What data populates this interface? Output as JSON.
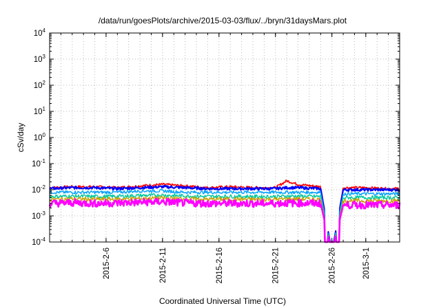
{
  "chart_data": {
    "type": "line",
    "title": "/data/run/goesPlots/archive/2015-03-03/flux/../bryn/31daysMars.plot",
    "xlabel": "Coordinated Universal Time (UTC)",
    "ylabel": "cSv/day",
    "yscale": "log",
    "ylim": [
      0.0001,
      10000
    ],
    "yticks": [
      {
        "base": "10",
        "exp": "-4",
        "value": 0.0001
      },
      {
        "base": "10",
        "exp": "-3",
        "value": 0.001
      },
      {
        "base": "10",
        "exp": "-2",
        "value": 0.01
      },
      {
        "base": "10",
        "exp": "-1",
        "value": 0.1
      },
      {
        "base": "10",
        "exp": "0",
        "value": 1
      },
      {
        "base": "10",
        "exp": "1",
        "value": 10
      },
      {
        "base": "10",
        "exp": "2",
        "value": 100
      },
      {
        "base": "10",
        "exp": "3",
        "value": 1000
      },
      {
        "base": "10",
        "exp": "4",
        "value": 10000
      }
    ],
    "xlim": [
      "2015-02-01",
      "2015-03-04"
    ],
    "xticks": [
      "2015-2-6",
      "2015-2-11",
      "2015-2-16",
      "2015-2-21",
      "2015-2-26",
      "2015-3-1"
    ],
    "grid": true,
    "series": [
      {
        "color": "#ff0000",
        "x": [
          "2015-02-01",
          "2015-02-03",
          "2015-02-05",
          "2015-02-07",
          "2015-02-09",
          "2015-02-11",
          "2015-02-13",
          "2015-02-15",
          "2015-02-17",
          "2015-02-19",
          "2015-02-21",
          "2015-02-22",
          "2015-02-23",
          "2015-02-25",
          "2015-02-26",
          "2015-02-27",
          "2015-03-01",
          "2015-03-03",
          "2015-03-04"
        ],
        "values": [
          0.012,
          0.013,
          0.013,
          0.012,
          0.014,
          0.016,
          0.014,
          0.012,
          0.013,
          0.012,
          0.012,
          0.022,
          0.016,
          0.013,
          4e-05,
          0.012,
          0.012,
          0.011,
          0.011
        ]
      },
      {
        "color": "#0000ff",
        "x": [
          "2015-02-01",
          "2015-02-03",
          "2015-02-05",
          "2015-02-07",
          "2015-02-09",
          "2015-02-11",
          "2015-02-13",
          "2015-02-15",
          "2015-02-17",
          "2015-02-19",
          "2015-02-21",
          "2015-02-22",
          "2015-02-23",
          "2015-02-25",
          "2015-02-26",
          "2015-02-27",
          "2015-03-01",
          "2015-03-03",
          "2015-03-04"
        ],
        "values": [
          0.011,
          0.012,
          0.012,
          0.011,
          0.012,
          0.013,
          0.012,
          0.011,
          0.011,
          0.011,
          0.011,
          0.012,
          0.012,
          0.011,
          4e-05,
          0.01,
          0.01,
          0.01,
          0.01
        ]
      },
      {
        "color": "#00a0ff",
        "x": [
          "2015-02-01",
          "2015-02-03",
          "2015-02-05",
          "2015-02-07",
          "2015-02-09",
          "2015-02-11",
          "2015-02-13",
          "2015-02-15",
          "2015-02-17",
          "2015-02-19",
          "2015-02-21",
          "2015-02-22",
          "2015-02-23",
          "2015-02-25",
          "2015-02-26",
          "2015-02-27",
          "2015-03-01",
          "2015-03-03",
          "2015-03-04"
        ],
        "values": [
          0.008,
          0.008,
          0.008,
          0.008,
          0.009,
          0.009,
          0.008,
          0.008,
          0.008,
          0.008,
          0.008,
          0.008,
          0.008,
          0.008,
          4e-05,
          0.007,
          0.007,
          0.007,
          0.007
        ]
      },
      {
        "color": "#00c8a0",
        "x": [
          "2015-02-01",
          "2015-02-03",
          "2015-02-05",
          "2015-02-07",
          "2015-02-09",
          "2015-02-11",
          "2015-02-13",
          "2015-02-15",
          "2015-02-17",
          "2015-02-19",
          "2015-02-21",
          "2015-02-22",
          "2015-02-23",
          "2015-02-25",
          "2015-02-26",
          "2015-02-27",
          "2015-03-01",
          "2015-03-03",
          "2015-03-04"
        ],
        "values": [
          0.0055,
          0.0057,
          0.0055,
          0.0056,
          0.006,
          0.0062,
          0.0058,
          0.0055,
          0.0056,
          0.0055,
          0.0055,
          0.0057,
          0.0057,
          0.0055,
          4e-05,
          0.005,
          0.005,
          0.005,
          0.005
        ]
      },
      {
        "color": "#c8a000",
        "x": [
          "2015-02-01",
          "2015-02-03",
          "2015-02-05",
          "2015-02-07",
          "2015-02-09",
          "2015-02-11",
          "2015-02-13",
          "2015-02-15",
          "2015-02-17",
          "2015-02-19",
          "2015-02-21",
          "2015-02-22",
          "2015-02-23",
          "2015-02-25",
          "2015-02-26",
          "2015-02-27",
          "2015-03-01",
          "2015-03-03",
          "2015-03-04"
        ],
        "values": [
          0.0042,
          0.0045,
          0.0043,
          0.0044,
          0.0046,
          0.0048,
          0.0045,
          0.0043,
          0.0044,
          0.0043,
          0.0043,
          0.0044,
          0.0044,
          0.0043,
          4e-05,
          0.0038,
          0.0038,
          0.0038,
          0.0038
        ]
      },
      {
        "color": "#ff00ff",
        "x": [
          "2015-02-01",
          "2015-02-03",
          "2015-02-05",
          "2015-02-07",
          "2015-02-09",
          "2015-02-11",
          "2015-02-13",
          "2015-02-15",
          "2015-02-17",
          "2015-02-19",
          "2015-02-21",
          "2015-02-22",
          "2015-02-23",
          "2015-02-25",
          "2015-02-26",
          "2015-02-27",
          "2015-03-01",
          "2015-03-03",
          "2015-03-04"
        ],
        "values": [
          0.003,
          0.0032,
          0.003,
          0.0031,
          0.0033,
          0.0035,
          0.0031,
          0.003,
          0.003,
          0.003,
          0.003,
          0.0031,
          0.0031,
          0.003,
          4e-05,
          0.0026,
          0.0026,
          0.0026,
          0.0026
        ]
      }
    ]
  }
}
